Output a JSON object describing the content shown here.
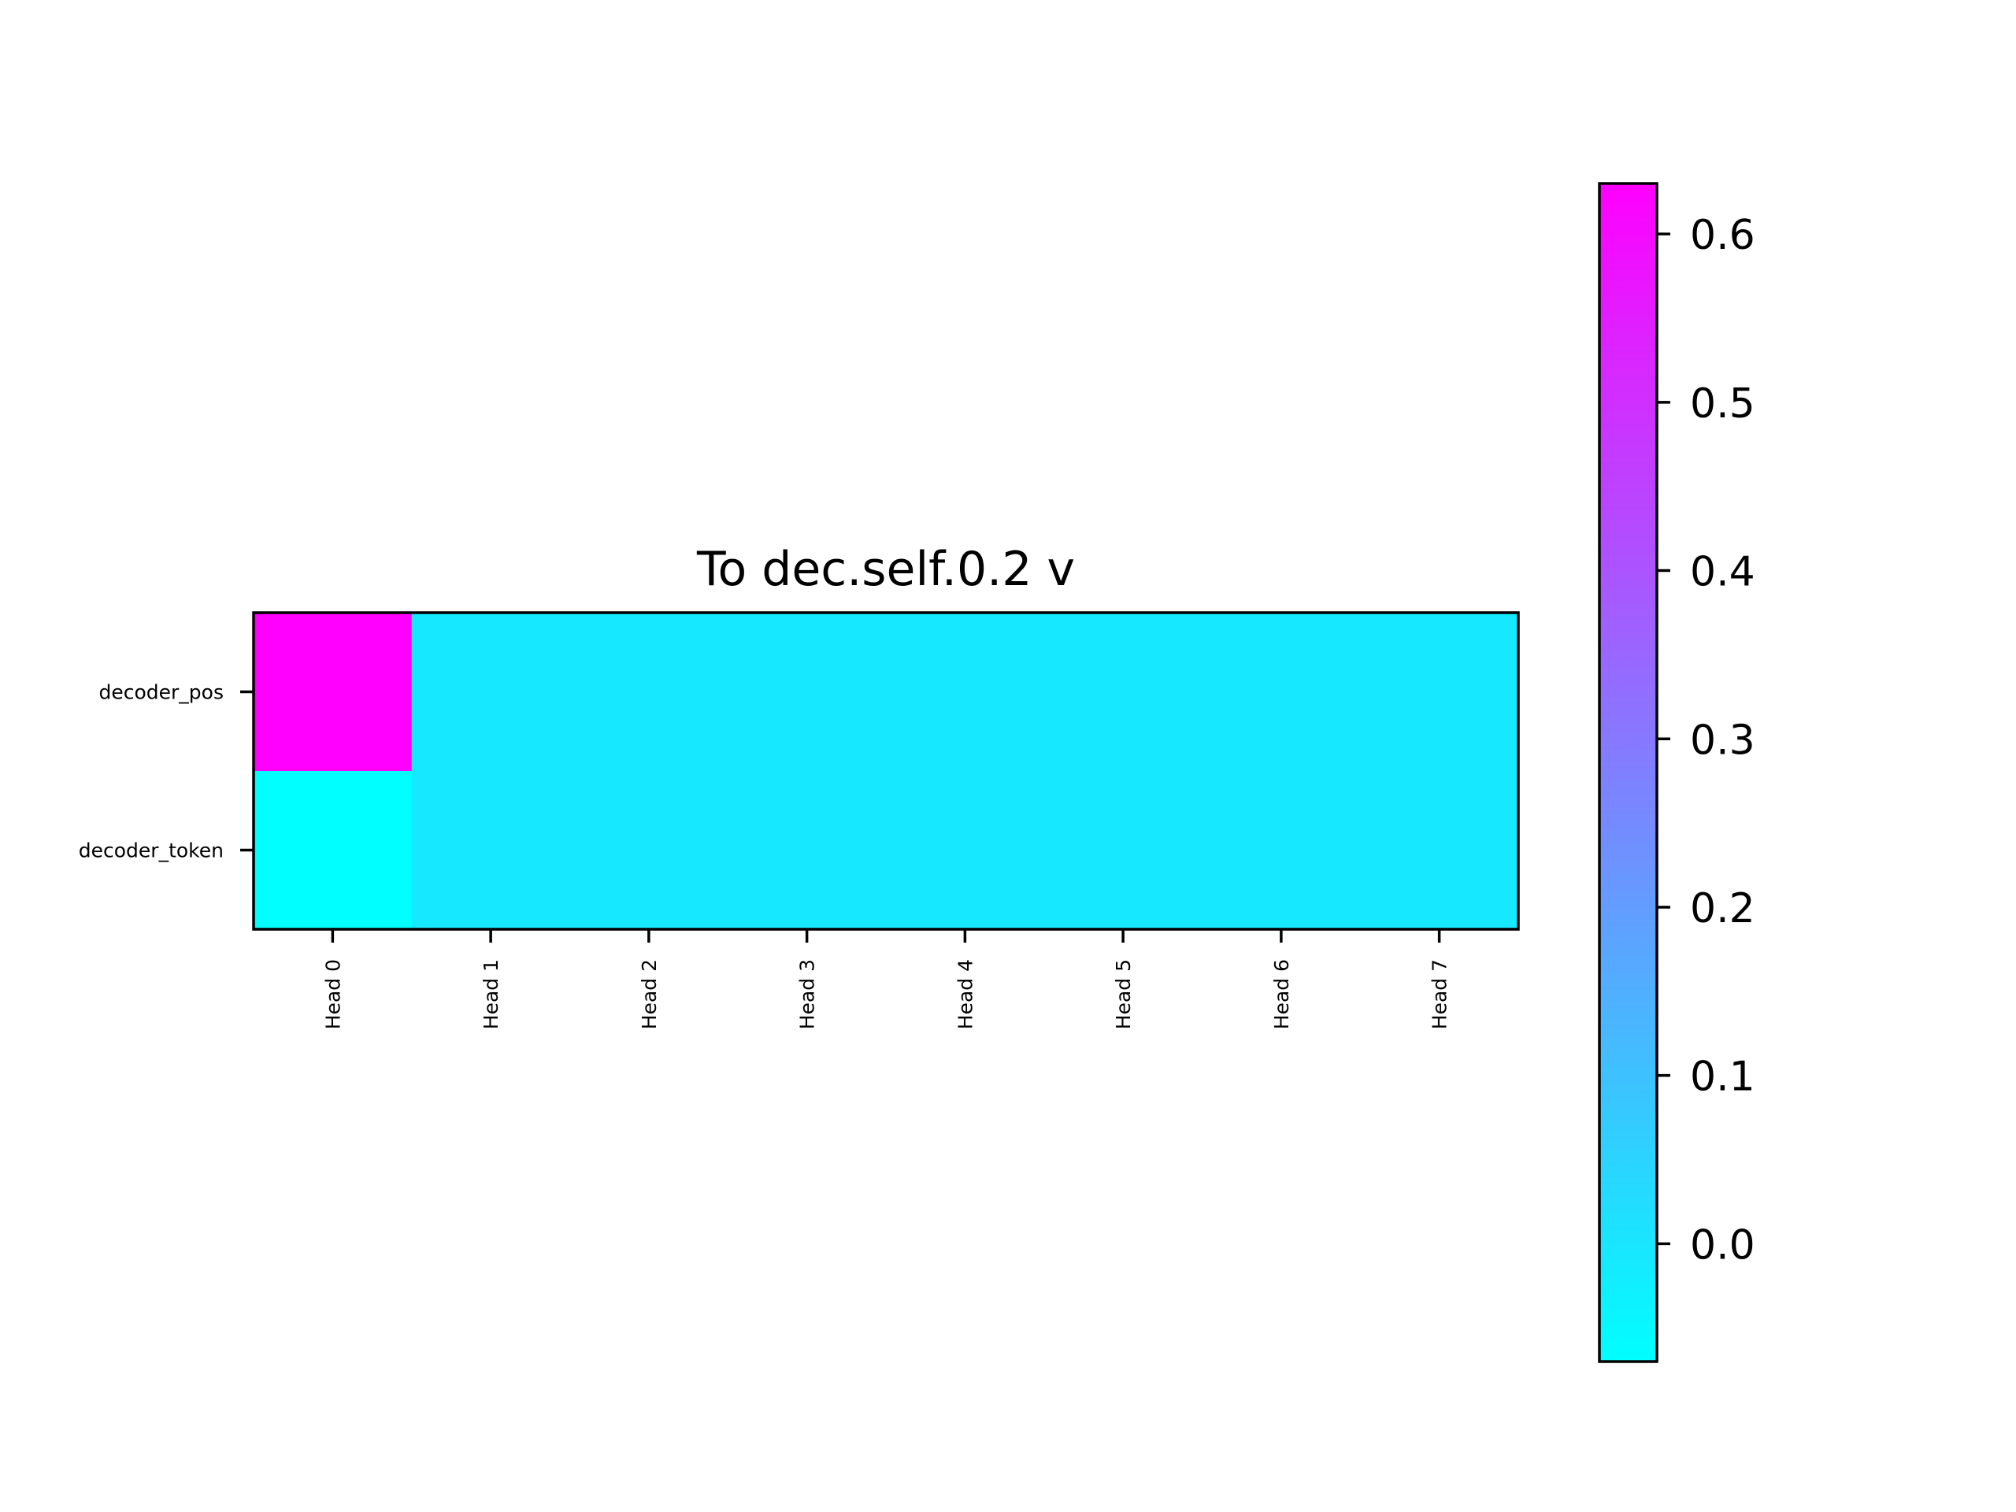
{
  "chart_data": {
    "type": "heatmap",
    "title": "To dec.self.0.2 v",
    "xlabel": "",
    "ylabel": "",
    "x_categories": [
      "Head 0",
      "Head 1",
      "Head 2",
      "Head 3",
      "Head 4",
      "Head 5",
      "Head 6",
      "Head 7"
    ],
    "y_categories": [
      "decoder_pos",
      "decoder_token"
    ],
    "values": [
      [
        0.63,
        -0.01,
        -0.01,
        -0.01,
        -0.01,
        -0.01,
        -0.01,
        -0.01
      ],
      [
        -0.07,
        -0.01,
        -0.01,
        -0.01,
        -0.01,
        -0.01,
        -0.01,
        -0.01
      ]
    ],
    "colormap": "cool",
    "colormap_colors": [
      "#00ffff",
      "#ff00ff"
    ],
    "colorbar": {
      "vmin": -0.07,
      "vmax": 0.63,
      "ticks": [
        0.0,
        0.1,
        0.2,
        0.3,
        0.4,
        0.5,
        0.6
      ],
      "tick_labels": [
        "0.0",
        "0.1",
        "0.2",
        "0.3",
        "0.4",
        "0.5",
        "0.6"
      ]
    },
    "grid": false
  }
}
